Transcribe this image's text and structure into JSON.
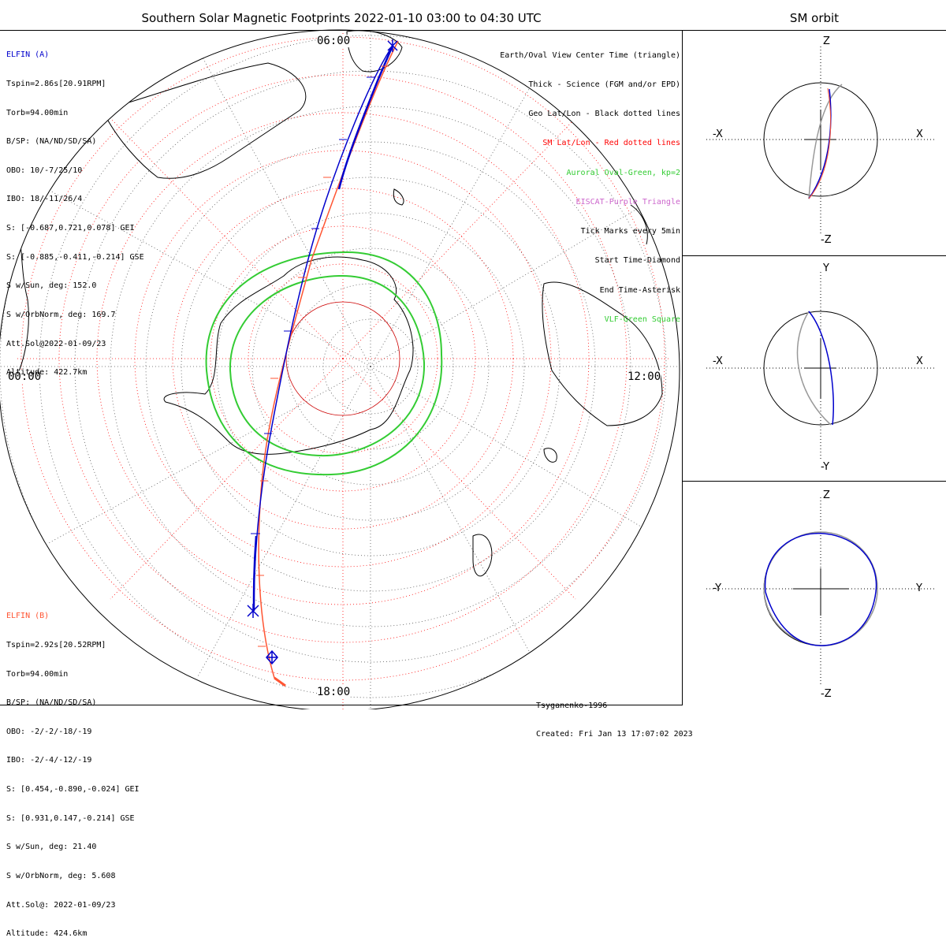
{
  "title": "Southern Solar Magnetic Footprints 2022-01-10 03:00 to 04:30 UTC",
  "sm_orbit_title": "SM orbit",
  "elfin_a": {
    "name": "ELFIN (A)",
    "lines": [
      "Tspin=2.86s[20.91RPM]",
      "Torb=94.00min",
      "B/SP: (NA/ND/SD/SA)",
      "OBO: 10/-7/25/10",
      "IBO: 18/-11/26/4",
      "S: [-0.687,0.721,0.078] GEI",
      "S: [-0.885,-0.411,-0.214] GSE",
      "S w/Sun, deg: 152.0",
      "S w/OrbNorm, deg: 169.7",
      "Att.Sol@2022-01-09/23",
      "Altitude: 422.7km"
    ],
    "color": "#0000cc"
  },
  "elfin_b": {
    "name": "ELFIN (B)",
    "lines": [
      "Tspin=2.92s[20.52RPM]",
      "Torb=94.00min",
      "B/SP: (NA/ND/SD/SA)",
      "OBO: -2/-2/-18/-19",
      "IBO: -2/-4/-12/-19",
      "S: [0.454,-0.890,-0.024] GEI",
      "S: [0.931,0.147,-0.214] GSE",
      "S w/Sun, deg: 21.40",
      "S w/OrbNorm, deg: 5.608",
      "Att.Sol@: 2022-01-09/23",
      "Altitude: 424.6km"
    ],
    "color": "#ff5533"
  },
  "legend": [
    {
      "text": "Earth/Oval View Center Time (triangle)",
      "color": "#000000"
    },
    {
      "text": "Thick - Science (FGM and/or EPD)",
      "color": "#000000"
    },
    {
      "text": "Geo Lat/Lon - Black dotted lines",
      "color": "#000000"
    },
    {
      "text": "SM Lat/Lon - Red dotted lines",
      "color": "#ff0000"
    },
    {
      "text": "Auroral Oval-Green, kp=2",
      "color": "#33cc33"
    },
    {
      "text": "EISCAT-Purple Triangle",
      "color": "#cc66cc"
    },
    {
      "text": "Tick Marks every 5min",
      "color": "#000000"
    },
    {
      "text": "Start Time-Diamond",
      "color": "#000000"
    },
    {
      "text": "End Time-Asterisk",
      "color": "#000000"
    },
    {
      "text": "VLF-Green Square",
      "color": "#33cc33"
    }
  ],
  "mlt_labels": {
    "top": "06:00",
    "left": "00:00",
    "right": "12:00",
    "bottom": "18:00"
  },
  "footer": {
    "model": "Tsyganenko-1996",
    "created": "Created: Fri Jan 13 17:07:02 2023"
  },
  "panels": [
    {
      "top_label": "Z",
      "bottom_label": "-Z",
      "left_label": "-X",
      "right_label": "X"
    },
    {
      "top_label": "Y",
      "bottom_label": "-Y",
      "left_label": "-X",
      "right_label": "X"
    },
    {
      "top_label": "Z",
      "bottom_label": "-Z",
      "left_label": "-Y",
      "right_label": "Y"
    }
  ],
  "colors": {
    "elfin_a": "#0000cc",
    "elfin_b": "#ff5533",
    "oval": "#33cc33",
    "sm_grid": "#ff0000",
    "geo_grid": "#000000",
    "orbit_gray": "#999999"
  }
}
